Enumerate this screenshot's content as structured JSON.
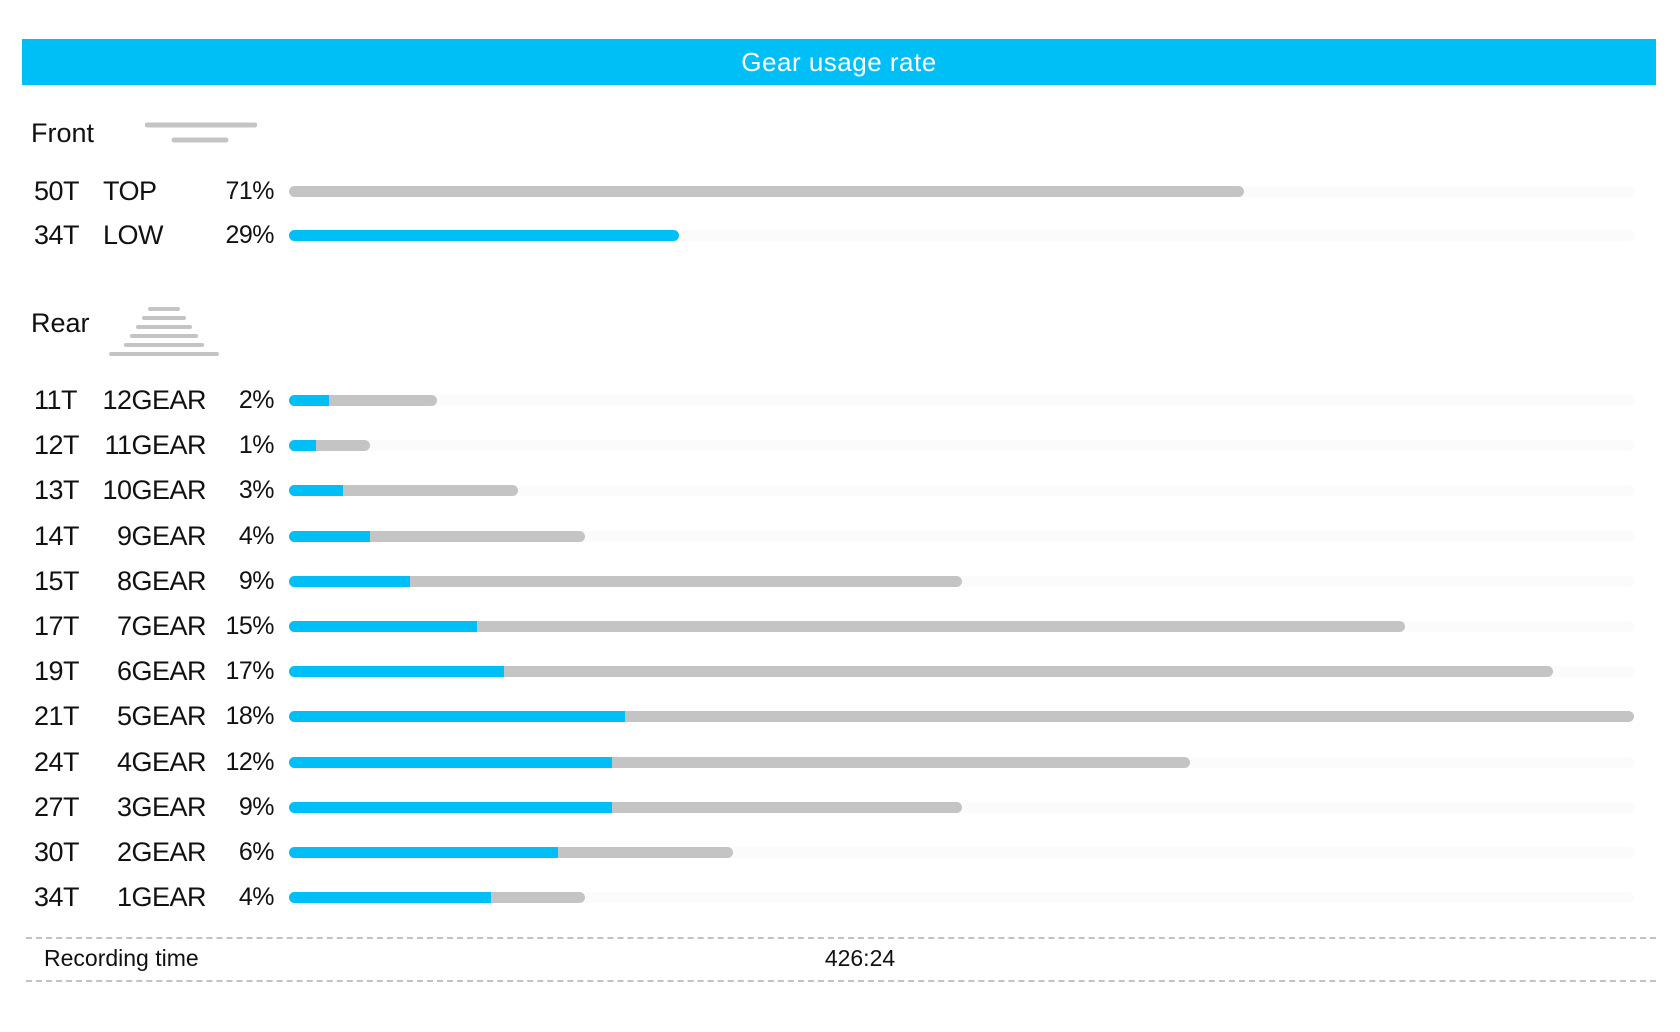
{
  "header": {
    "title": "Gear usage rate"
  },
  "front": {
    "title": "Front",
    "icon": "front-chainring-icon",
    "rows": [
      {
        "teeth": "50T",
        "gear": "TOP",
        "percent": "71%",
        "total_fraction": 0.71,
        "highlight_fraction": 0.0
      },
      {
        "teeth": "34T",
        "gear": "LOW",
        "percent": "29%",
        "total_fraction": 0.29,
        "highlight_fraction": 0.29
      }
    ]
  },
  "rear": {
    "title": "Rear",
    "icon": "rear-cassette-icon",
    "rows": [
      {
        "teeth": "11T",
        "gear": "12GEAR",
        "percent": "2%",
        "total_fraction": 0.11,
        "highlight_fraction": 0.03
      },
      {
        "teeth": "12T",
        "gear": "11GEAR",
        "percent": "1%",
        "total_fraction": 0.06,
        "highlight_fraction": 0.02
      },
      {
        "teeth": "13T",
        "gear": "10GEAR",
        "percent": "3%",
        "total_fraction": 0.17,
        "highlight_fraction": 0.04
      },
      {
        "teeth": "14T",
        "gear": "9GEAR",
        "percent": "4%",
        "total_fraction": 0.22,
        "highlight_fraction": 0.06
      },
      {
        "teeth": "15T",
        "gear": "8GEAR",
        "percent": "9%",
        "total_fraction": 0.5,
        "highlight_fraction": 0.09
      },
      {
        "teeth": "17T",
        "gear": "7GEAR",
        "percent": "15%",
        "total_fraction": 0.83,
        "highlight_fraction": 0.14
      },
      {
        "teeth": "19T",
        "gear": "6GEAR",
        "percent": "17%",
        "total_fraction": 0.94,
        "highlight_fraction": 0.16
      },
      {
        "teeth": "21T",
        "gear": "5GEAR",
        "percent": "18%",
        "total_fraction": 1.0,
        "highlight_fraction": 0.25
      },
      {
        "teeth": "24T",
        "gear": "4GEAR",
        "percent": "12%",
        "total_fraction": 0.67,
        "highlight_fraction": 0.24
      },
      {
        "teeth": "27T",
        "gear": "3GEAR",
        "percent": "9%",
        "total_fraction": 0.5,
        "highlight_fraction": 0.24
      },
      {
        "teeth": "30T",
        "gear": "2GEAR",
        "percent": "6%",
        "total_fraction": 0.33,
        "highlight_fraction": 0.2
      },
      {
        "teeth": "34T",
        "gear": "1GEAR",
        "percent": "4%",
        "total_fraction": 0.22,
        "highlight_fraction": 0.15
      }
    ]
  },
  "recording": {
    "label": "Recording time",
    "value": "426:24"
  },
  "colors": {
    "accent": "#00bff7",
    "bar_gray": "#c4c4c4",
    "text": "#111111"
  }
}
